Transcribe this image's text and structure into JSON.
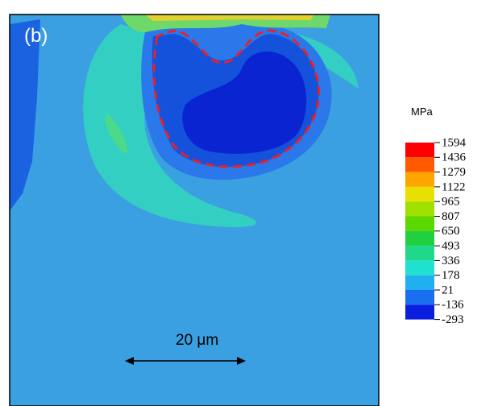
{
  "panel_label": "(b)",
  "legend": {
    "unit": "MPa",
    "levels": [
      "1594",
      "1436",
      "1279",
      "1122",
      "965",
      "807",
      "650",
      "493",
      "336",
      "178",
      "21",
      "-136",
      "-293"
    ]
  },
  "scale_bar": {
    "label": "20 μm"
  }
}
